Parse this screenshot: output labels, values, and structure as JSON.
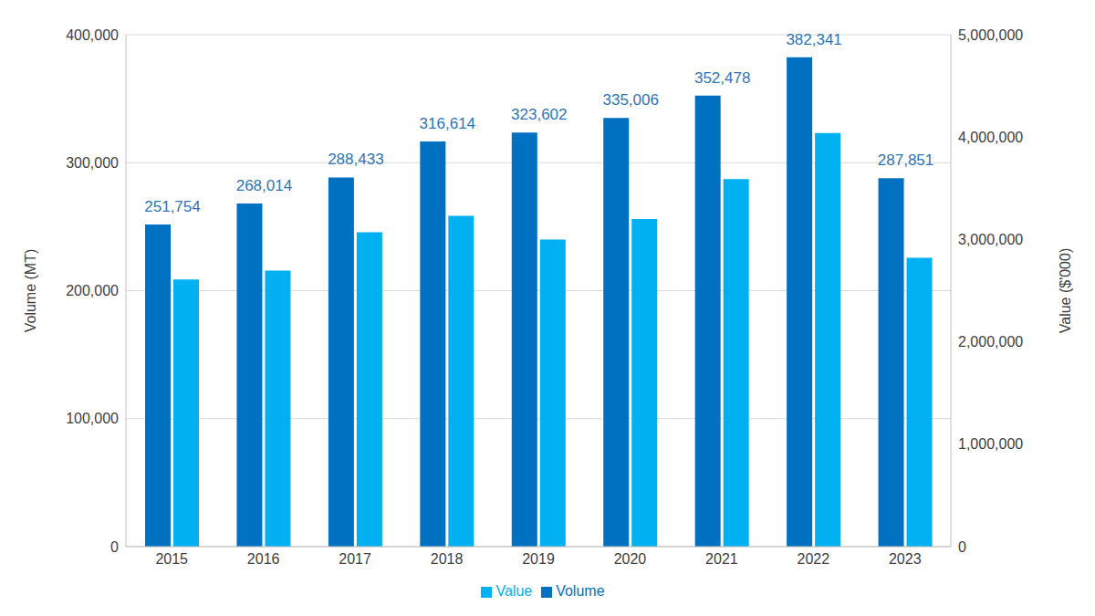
{
  "chart_data": {
    "type": "bar",
    "categories": [
      "2015",
      "2016",
      "2017",
      "2018",
      "2019",
      "2020",
      "2021",
      "2022",
      "2023"
    ],
    "series": [
      {
        "name": "Volume",
        "color": "#0070c0",
        "values": [
          251754,
          268014,
          288433,
          316614,
          323602,
          335006,
          352478,
          382341,
          287851
        ],
        "value_labels": [
          "251,754",
          "268,014",
          "288,433",
          "316,614",
          "323,602",
          "335,006",
          "352,478",
          "382,341",
          "287,851"
        ],
        "data_labels": true
      },
      {
        "name": "Value",
        "color": "#00b0f0",
        "axis": "y2",
        "values": [
          2610000,
          2695000,
          3070000,
          3230000,
          3000000,
          3200000,
          3590000,
          4040000,
          2820000
        ]
      }
    ],
    "ylabel": "Volume (MT)",
    "y2label": "Value ($'000)",
    "ylim": [
      0,
      400000
    ],
    "yticks": [
      0,
      {
        "value": 100000,
        "label": "100,000"
      },
      {
        "value": 200000,
        "label": "200,000"
      },
      {
        "value": 300000,
        "label": "300,000"
      },
      {
        "value": 400000,
        "label": "400,000"
      }
    ],
    "y2lim": [
      0,
      5000000
    ],
    "y2ticks": [
      0,
      {
        "value": 1000000,
        "label": "1,000,000"
      },
      {
        "value": 2000000,
        "label": "2,000,000"
      },
      {
        "value": 3000000,
        "label": "3,000,000"
      },
      {
        "value": 4000000,
        "label": "4,000,000"
      },
      {
        "value": 5000000,
        "label": "5,000,000"
      }
    ],
    "grid": true,
    "legend": "bottom"
  }
}
